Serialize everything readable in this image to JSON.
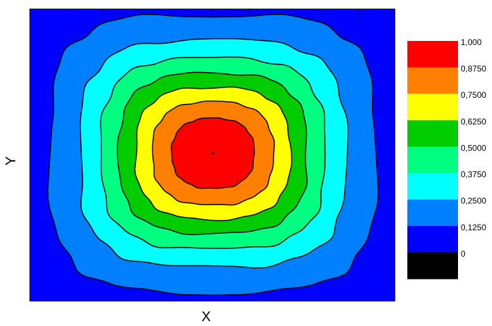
{
  "chart_data": {
    "type": "contour",
    "title": "",
    "xlabel": "X",
    "ylabel": "Y",
    "grid": false,
    "legend_placement": "right",
    "peak_value": 1.0,
    "levels": [
      {
        "label": "1,000",
        "value": 1.0,
        "color": "#ff0000"
      },
      {
        "label": "0,8750",
        "value": 0.875,
        "color": "#ff8000"
      },
      {
        "label": "0,7500",
        "value": 0.75,
        "color": "#ffff00"
      },
      {
        "label": "0,6250",
        "value": 0.625,
        "color": "#00cc00"
      },
      {
        "label": "0,5000",
        "value": 0.5,
        "color": "#00ff80"
      },
      {
        "label": "0,3750",
        "value": 0.375,
        "color": "#00ffff"
      },
      {
        "label": "0,2500",
        "value": 0.25,
        "color": "#0080ff"
      },
      {
        "label": "0,1250",
        "value": 0.125,
        "color": "#0000ff"
      },
      {
        "label": "0",
        "value": 0.0,
        "color": "#000000"
      }
    ],
    "background_color": "#0000ff"
  }
}
